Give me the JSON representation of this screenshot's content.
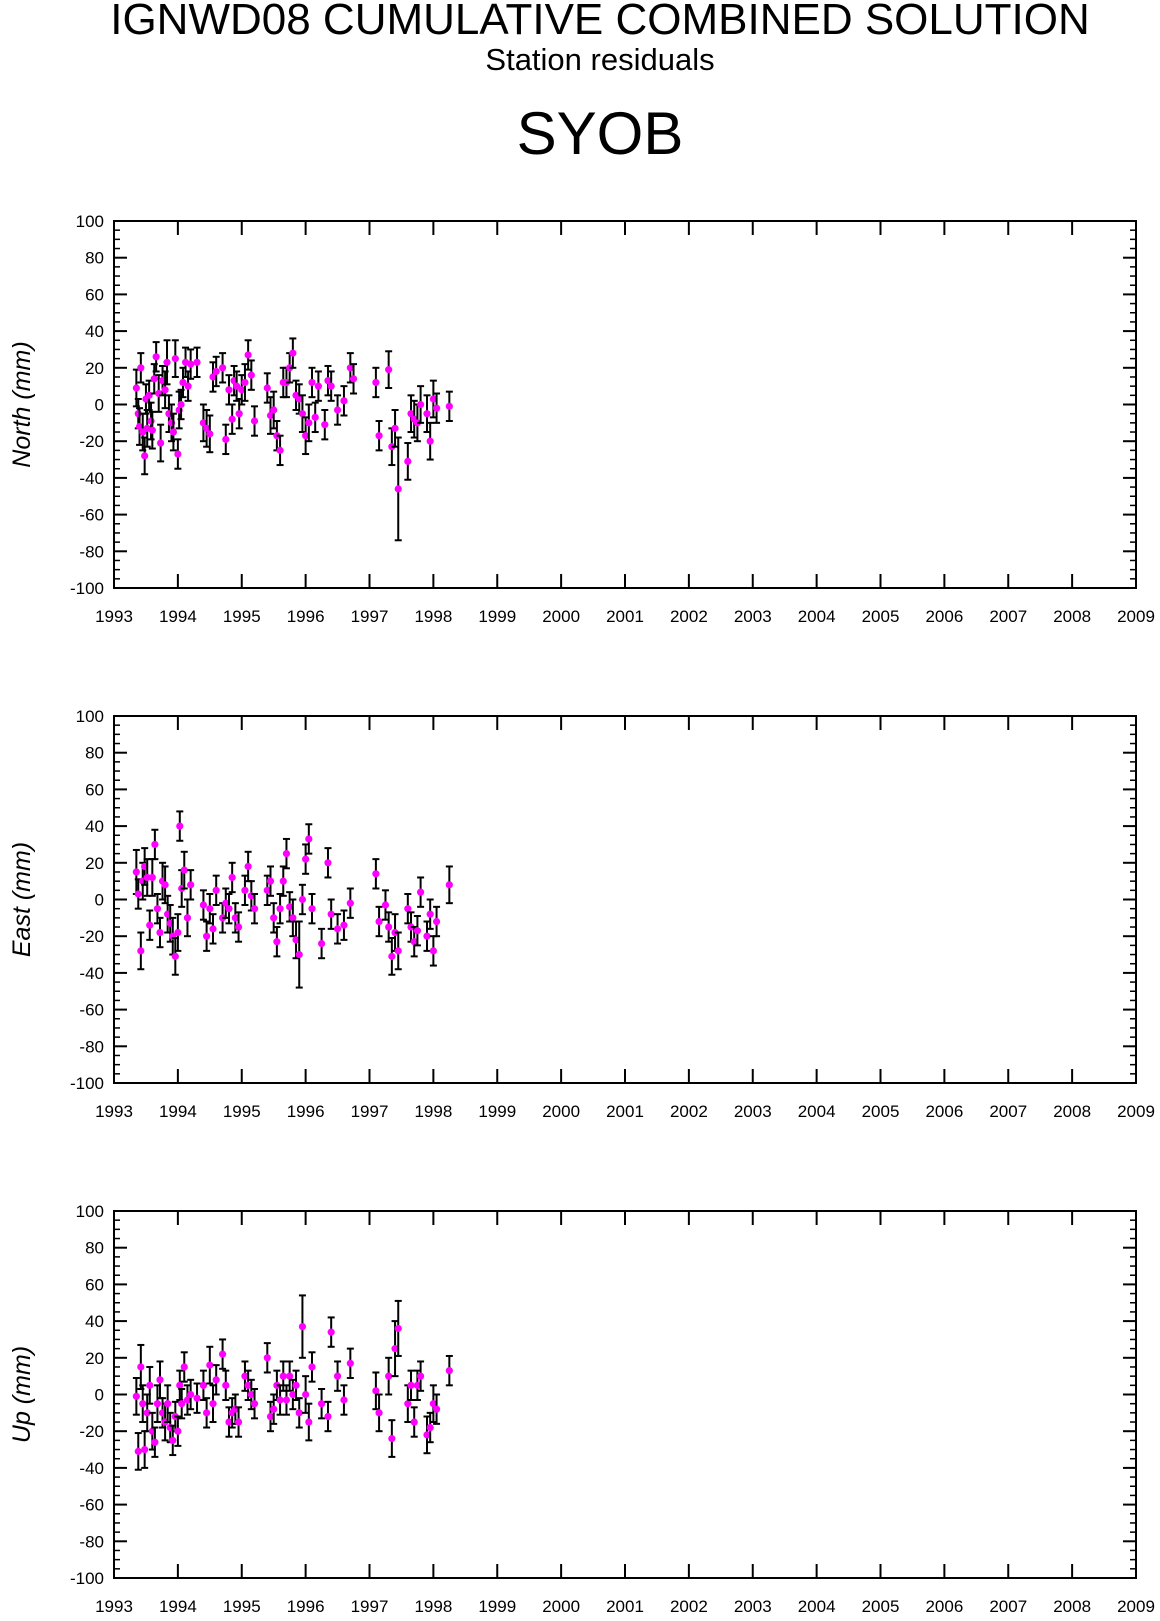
{
  "header": {
    "title": "IGNWD08 CUMULATIVE COMBINED SOLUTION",
    "subtitle": "Station residuals",
    "station": "SYOB"
  },
  "colors": {
    "point": "#ff00ff",
    "errorbar": "#000000",
    "axis": "#000000"
  },
  "chart_data": [
    {
      "type": "scatter",
      "ylabel": "North (mm)",
      "xlim": [
        1993,
        2009
      ],
      "ylim": [
        -100,
        100
      ],
      "x_ticks": [
        "1993",
        "1994",
        "1995",
        "1996",
        "1997",
        "1998",
        "1999",
        "2000",
        "2001",
        "2002",
        "2003",
        "2004",
        "2005",
        "2006",
        "2007",
        "2008",
        "2009"
      ],
      "y_ticks": [
        "100",
        "80",
        "60",
        "40",
        "20",
        "0",
        "-20",
        "-40",
        "-60",
        "-80",
        "-100"
      ],
      "grid": false,
      "series": [
        {
          "x": [
            1993.35,
            1993.38,
            1993.4,
            1993.42,
            1993.45,
            1993.48,
            1993.5,
            1993.52,
            1993.55,
            1993.58,
            1993.6,
            1993.63,
            1993.66,
            1993.7,
            1993.73,
            1993.76,
            1993.8,
            1993.83,
            1993.86,
            1993.9,
            1993.93,
            1993.96,
            1994.0,
            1994.02,
            1994.05,
            1994.08,
            1994.12,
            1994.16,
            1994.2,
            1994.3,
            1994.4,
            1994.45,
            1994.5,
            1994.55,
            1994.6,
            1994.7,
            1994.75,
            1994.8,
            1994.85,
            1994.88,
            1994.92,
            1994.96,
            1995.0,
            1995.05,
            1995.1,
            1995.15,
            1995.2,
            1995.4,
            1995.45,
            1995.5,
            1995.55,
            1995.6,
            1995.65,
            1995.7,
            1995.75,
            1995.8,
            1995.85,
            1995.9,
            1995.95,
            1996.0,
            1996.05,
            1996.1,
            1996.15,
            1996.2,
            1996.3,
            1996.35,
            1996.4,
            1996.5,
            1996.6,
            1996.7,
            1996.75,
            1997.1,
            1997.15,
            1997.3,
            1997.35,
            1997.4,
            1997.45,
            1997.6,
            1997.65,
            1997.7,
            1997.75,
            1997.8,
            1997.9,
            1997.95,
            1998.0,
            1998.05,
            1998.25
          ],
          "y": [
            9,
            -5,
            -12,
            20,
            -15,
            -28,
            3,
            -13,
            5,
            -9,
            -14,
            14,
            26,
            6,
            -21,
            13,
            8,
            23,
            -5,
            -10,
            -15,
            25,
            -27,
            -3,
            0,
            12,
            23,
            10,
            22,
            23,
            -10,
            -13,
            -16,
            15,
            18,
            20,
            -19,
            8,
            -8,
            13,
            10,
            -5,
            8,
            12,
            27,
            16,
            -9,
            9,
            -6,
            -3,
            -17,
            -25,
            12,
            12,
            20,
            28,
            5,
            3,
            -5,
            -17,
            -10,
            12,
            -7,
            10,
            -11,
            13,
            10,
            -3,
            2,
            20,
            14,
            12,
            -17,
            19,
            -23,
            -13,
            -46,
            -31,
            -5,
            -8,
            -10,
            0,
            -5,
            -20,
            3,
            -2,
            -1
          ],
          "err": [
            10,
            8,
            10,
            8,
            10,
            10,
            8,
            10,
            8,
            10,
            10,
            8,
            8,
            10,
            10,
            8,
            10,
            12,
            10,
            10,
            10,
            10,
            8,
            10,
            8,
            8,
            8,
            8,
            8,
            8,
            10,
            10,
            10,
            8,
            8,
            8,
            8,
            8,
            8,
            8,
            8,
            8,
            8,
            10,
            8,
            8,
            8,
            8,
            10,
            10,
            8,
            8,
            8,
            8,
            8,
            8,
            8,
            8,
            10,
            10,
            10,
            8,
            8,
            8,
            8,
            8,
            8,
            8,
            8,
            8,
            8,
            8,
            8,
            10,
            10,
            10,
            28,
            10,
            10,
            10,
            10,
            10,
            10,
            10,
            10,
            8,
            8
          ]
        }
      ]
    },
    {
      "type": "scatter",
      "ylabel": "East (mm)",
      "xlim": [
        1993,
        2009
      ],
      "ylim": [
        -100,
        100
      ],
      "x_ticks": [
        "1993",
        "1994",
        "1995",
        "1996",
        "1997",
        "1998",
        "1999",
        "2000",
        "2001",
        "2002",
        "2003",
        "2004",
        "2005",
        "2006",
        "2007",
        "2008",
        "2009"
      ],
      "y_ticks": [
        "100",
        "80",
        "60",
        "40",
        "20",
        "0",
        "-20",
        "-40",
        "-60",
        "-80",
        "-100"
      ],
      "grid": false,
      "series": [
        {
          "x": [
            1993.35,
            1993.38,
            1993.42,
            1993.45,
            1993.48,
            1993.52,
            1993.56,
            1993.6,
            1993.64,
            1993.68,
            1993.72,
            1993.76,
            1993.8,
            1993.84,
            1993.88,
            1993.92,
            1993.96,
            1994.0,
            1994.03,
            1994.06,
            1994.1,
            1994.15,
            1994.2,
            1994.4,
            1994.45,
            1994.5,
            1994.55,
            1994.6,
            1994.7,
            1994.75,
            1994.8,
            1994.85,
            1994.9,
            1994.95,
            1995.05,
            1995.1,
            1995.15,
            1995.2,
            1995.4,
            1995.45,
            1995.5,
            1995.55,
            1995.6,
            1995.65,
            1995.7,
            1995.75,
            1995.8,
            1995.85,
            1995.9,
            1995.95,
            1996.0,
            1996.05,
            1996.1,
            1996.25,
            1996.35,
            1996.4,
            1996.5,
            1996.6,
            1996.7,
            1997.1,
            1997.15,
            1997.25,
            1997.3,
            1997.35,
            1997.4,
            1997.45,
            1997.6,
            1997.65,
            1997.7,
            1997.75,
            1997.8,
            1997.9,
            1997.95,
            1998.0,
            1998.05,
            1998.25
          ],
          "y": [
            15,
            3,
            -28,
            10,
            18,
            12,
            -14,
            12,
            30,
            -5,
            -18,
            10,
            8,
            -8,
            -13,
            -20,
            -31,
            -18,
            40,
            6,
            16,
            -10,
            8,
            -3,
            -20,
            -5,
            -16,
            5,
            -10,
            -2,
            -5,
            12,
            -10,
            -15,
            5,
            18,
            2,
            -5,
            5,
            10,
            -10,
            -23,
            -5,
            10,
            25,
            -4,
            -10,
            -22,
            -30,
            0,
            22,
            33,
            -5,
            -24,
            20,
            -8,
            -16,
            -14,
            -2,
            14,
            -12,
            -3,
            -15,
            -31,
            -18,
            -28,
            -5,
            -15,
            -23,
            -17,
            4,
            -20,
            -8,
            -28,
            -12,
            8
          ],
          "err": [
            12,
            8,
            10,
            10,
            10,
            10,
            8,
            10,
            8,
            8,
            8,
            10,
            10,
            10,
            10,
            10,
            10,
            10,
            8,
            10,
            10,
            10,
            8,
            8,
            8,
            8,
            8,
            8,
            8,
            8,
            8,
            8,
            8,
            8,
            8,
            8,
            8,
            8,
            8,
            8,
            8,
            8,
            8,
            8,
            8,
            8,
            10,
            10,
            18,
            8,
            8,
            8,
            8,
            8,
            8,
            8,
            8,
            8,
            8,
            8,
            8,
            8,
            8,
            10,
            10,
            10,
            8,
            8,
            8,
            8,
            8,
            8,
            8,
            8,
            8,
            10
          ]
        }
      ]
    },
    {
      "type": "scatter",
      "ylabel": "Up (mm)",
      "xlim": [
        1993,
        2009
      ],
      "ylim": [
        -100,
        100
      ],
      "x_ticks": [
        "1993",
        "1994",
        "1995",
        "1996",
        "1997",
        "1998",
        "1999",
        "2000",
        "2001",
        "2002",
        "2003",
        "2004",
        "2005",
        "2006",
        "2007",
        "2008",
        "2009"
      ],
      "y_ticks": [
        "100",
        "80",
        "60",
        "40",
        "20",
        "0",
        "-20",
        "-40",
        "-60",
        "-80",
        "-100"
      ],
      "grid": false,
      "series": [
        {
          "x": [
            1993.35,
            1993.38,
            1993.42,
            1993.45,
            1993.48,
            1993.52,
            1993.56,
            1993.6,
            1993.64,
            1993.68,
            1993.72,
            1993.76,
            1993.8,
            1993.84,
            1993.88,
            1993.92,
            1993.96,
            1994.0,
            1994.03,
            1994.06,
            1994.1,
            1994.15,
            1994.2,
            1994.3,
            1994.4,
            1994.45,
            1994.5,
            1994.55,
            1994.6,
            1994.7,
            1994.75,
            1994.8,
            1994.85,
            1994.9,
            1994.95,
            1995.05,
            1995.1,
            1995.15,
            1995.2,
            1995.4,
            1995.45,
            1995.5,
            1995.55,
            1995.6,
            1995.65,
            1995.7,
            1995.75,
            1995.8,
            1995.85,
            1995.9,
            1995.95,
            1996.0,
            1996.05,
            1996.1,
            1996.25,
            1996.35,
            1996.4,
            1996.5,
            1996.6,
            1996.7,
            1997.1,
            1997.15,
            1997.3,
            1997.35,
            1997.4,
            1997.45,
            1997.6,
            1997.65,
            1997.7,
            1997.75,
            1997.8,
            1997.9,
            1997.95,
            1998.0,
            1998.05,
            1998.25
          ],
          "y": [
            -1,
            -31,
            15,
            -5,
            -30,
            -10,
            5,
            -20,
            -26,
            -5,
            8,
            -10,
            -15,
            -5,
            -18,
            -25,
            -12,
            -20,
            5,
            -5,
            15,
            -3,
            0,
            -2,
            5,
            -10,
            16,
            -5,
            8,
            22,
            5,
            -15,
            -10,
            -8,
            -15,
            10,
            5,
            0,
            -5,
            20,
            -12,
            -8,
            5,
            -3,
            10,
            -3,
            10,
            0,
            5,
            -10,
            37,
            0,
            -15,
            15,
            -5,
            -12,
            34,
            10,
            -3,
            17,
            2,
            -10,
            10,
            -24,
            25,
            36,
            -5,
            5,
            -15,
            5,
            10,
            -22,
            -18,
            -5,
            -8,
            13
          ],
          "err": [
            10,
            10,
            12,
            10,
            10,
            10,
            10,
            10,
            8,
            10,
            10,
            8,
            10,
            10,
            8,
            8,
            8,
            8,
            8,
            8,
            8,
            8,
            8,
            8,
            8,
            8,
            10,
            10,
            8,
            8,
            8,
            8,
            8,
            8,
            8,
            8,
            8,
            8,
            8,
            8,
            8,
            8,
            8,
            8,
            8,
            8,
            8,
            8,
            8,
            8,
            17,
            10,
            10,
            8,
            8,
            8,
            8,
            8,
            8,
            8,
            10,
            10,
            10,
            10,
            15,
            15,
            10,
            8,
            8,
            8,
            8,
            10,
            8,
            10,
            8,
            8
          ]
        }
      ]
    }
  ]
}
